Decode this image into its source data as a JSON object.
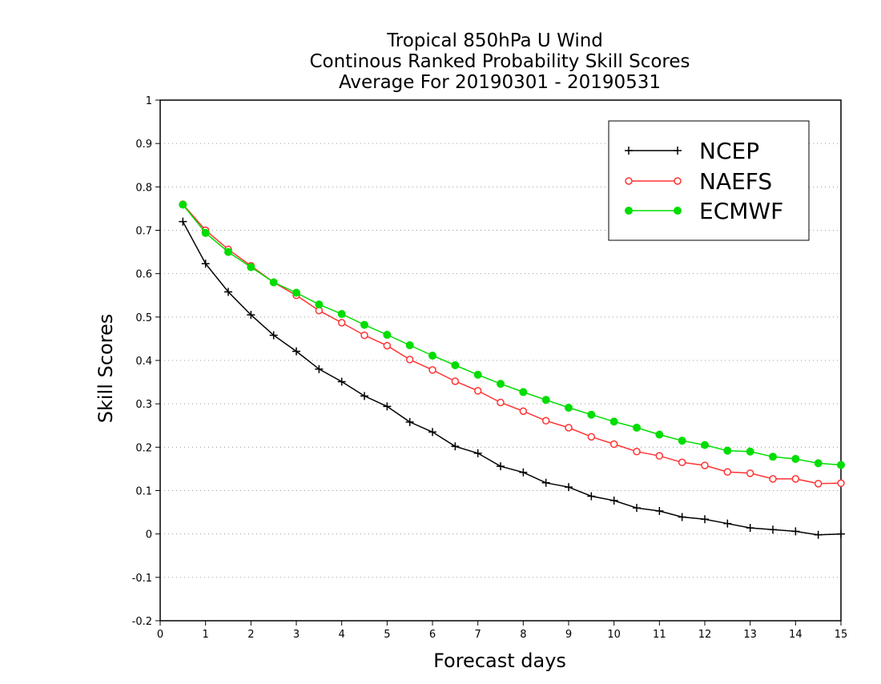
{
  "chart_data": {
    "type": "line",
    "title": [
      "Tropical 850hPa U Wind",
      "Continous Ranked Probability Skill Scores",
      "Average For 20190301 - 20190531"
    ],
    "xlabel": "Forecast days",
    "ylabel": "Skill Scores",
    "xlim": [
      0,
      15
    ],
    "ylim": [
      -0.2,
      1
    ],
    "xticks": [
      0,
      1,
      2,
      3,
      4,
      5,
      6,
      7,
      8,
      9,
      10,
      11,
      12,
      13,
      14,
      15
    ],
    "xtick_labels": [
      "0",
      "1",
      "2",
      "3",
      "4",
      "5",
      "6",
      "7",
      "8",
      "9",
      "10",
      "11",
      "12",
      "13",
      "14",
      "15"
    ],
    "yticks": [
      -0.2,
      -0.1,
      0,
      0.1,
      0.2,
      0.3,
      0.4,
      0.5,
      0.6,
      0.7,
      0.8,
      0.9,
      1
    ],
    "ytick_labels": [
      "-0.2",
      "-0.1",
      "0",
      "0.1",
      "0.2",
      "0.3",
      "0.4",
      "0.5",
      "0.6",
      "0.7",
      "0.8",
      "0.9",
      "1"
    ],
    "grid": "horizontal-dotted",
    "legend_position": "top-right",
    "x": [
      0.5,
      1,
      1.5,
      2,
      2.5,
      3,
      3.5,
      4,
      4.5,
      5,
      5.5,
      6,
      6.5,
      7,
      7.5,
      8,
      8.5,
      9,
      9.5,
      10,
      10.5,
      11,
      11.5,
      12,
      12.5,
      13,
      13.5,
      14,
      14.5,
      15
    ],
    "series": [
      {
        "name": "NCEP",
        "color": "#000000",
        "marker": "plus",
        "values": [
          0.72,
          0.623,
          0.558,
          0.505,
          0.458,
          0.421,
          0.38,
          0.351,
          0.318,
          0.294,
          0.258,
          0.235,
          0.202,
          0.186,
          0.156,
          0.142,
          0.118,
          0.108,
          0.087,
          0.077,
          0.06,
          0.053,
          0.039,
          0.034,
          0.024,
          0.014,
          0.01,
          0.006,
          -0.002,
          0
        ]
      },
      {
        "name": "NAEFS",
        "color": "#ff3333",
        "marker": "open-circle",
        "values": [
          0.76,
          0.7,
          0.656,
          0.618,
          0.58,
          0.55,
          0.515,
          0.487,
          0.458,
          0.434,
          0.402,
          0.378,
          0.352,
          0.33,
          0.303,
          0.283,
          0.261,
          0.245,
          0.224,
          0.207,
          0.19,
          0.18,
          0.165,
          0.158,
          0.143,
          0.14,
          0.127,
          0.127,
          0.116,
          0.117
        ]
      },
      {
        "name": "ECMWF",
        "color": "#00dd00",
        "marker": "filled-circle",
        "values": [
          0.759,
          0.694,
          0.65,
          0.615,
          0.58,
          0.556,
          0.529,
          0.507,
          0.482,
          0.459,
          0.435,
          0.411,
          0.389,
          0.367,
          0.346,
          0.327,
          0.309,
          0.291,
          0.275,
          0.259,
          0.245,
          0.229,
          0.215,
          0.205,
          0.192,
          0.19,
          0.178,
          0.173,
          0.163,
          0.159
        ]
      }
    ]
  }
}
